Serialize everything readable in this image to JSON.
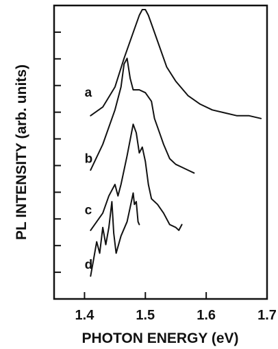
{
  "chart_data": {
    "type": "line",
    "xlabel": "PHOTON ENERGY (eV)",
    "ylabel": "PL INTENSITY (arb. units)",
    "xlim": [
      1.35,
      1.7
    ],
    "ylim": [
      0,
      10
    ],
    "x_ticks": [
      "1.4",
      "1.5",
      "1.6",
      "1.7"
    ],
    "y_ticks_count": 10,
    "grid": false,
    "legend": "none",
    "series": [
      {
        "name": "",
        "x": [
          1.41,
          1.43,
          1.45,
          1.465,
          1.48,
          1.49,
          1.495,
          1.5,
          1.505,
          1.51,
          1.52,
          1.535,
          1.55,
          1.57,
          1.59,
          1.61,
          1.63,
          1.65,
          1.67,
          1.69
        ],
        "y": [
          6.3,
          6.6,
          7.3,
          8.3,
          9.2,
          9.8,
          10.0,
          10.0,
          9.8,
          9.5,
          8.9,
          8.0,
          7.5,
          7.0,
          6.7,
          6.5,
          6.4,
          6.3,
          6.3,
          6.2
        ]
      },
      {
        "name": "a",
        "x": [
          1.41,
          1.43,
          1.45,
          1.46,
          1.465,
          1.47,
          1.475,
          1.48,
          1.49,
          1.5,
          1.51,
          1.515,
          1.52,
          1.525,
          1.53,
          1.54,
          1.55,
          1.56,
          1.57,
          1.58
        ],
        "y": [
          4.4,
          5.3,
          6.5,
          7.3,
          8.1,
          8.3,
          7.6,
          7.2,
          7.2,
          7.1,
          6.8,
          6.2,
          5.9,
          5.6,
          5.3,
          4.8,
          4.6,
          4.5,
          4.4,
          4.3
        ],
        "label_at": [
          1.425,
          7.1
        ]
      },
      {
        "name": "b",
        "x": [
          1.41,
          1.43,
          1.44,
          1.45,
          1.455,
          1.46,
          1.47,
          1.48,
          1.485,
          1.49,
          1.495,
          1.5,
          1.505,
          1.51,
          1.52,
          1.53,
          1.54,
          1.55,
          1.555,
          1.56
        ],
        "y": [
          2.3,
          2.9,
          3.5,
          3.9,
          3.5,
          3.9,
          4.9,
          6.0,
          5.7,
          5.0,
          5.2,
          4.7,
          3.9,
          3.4,
          3.2,
          2.9,
          2.5,
          2.4,
          2.3,
          2.5
        ],
        "label_at": [
          1.425,
          4.8
        ]
      },
      {
        "name": "c",
        "x": [
          1.41,
          1.415,
          1.42,
          1.425,
          1.43,
          1.435,
          1.44,
          1.445,
          1.448,
          1.452,
          1.46,
          1.47,
          1.475,
          1.48,
          1.482,
          1.485,
          1.488,
          1.49
        ],
        "y": [
          0.7,
          1.3,
          1.9,
          1.5,
          2.4,
          1.8,
          2.4,
          3.3,
          2.2,
          1.5,
          2.1,
          2.6,
          3.1,
          3.6,
          3.2,
          3.3,
          2.6,
          2.5
        ],
        "label_at": [
          1.425,
          3.0
        ]
      },
      {
        "name": "d",
        "label_at": [
          1.425,
          1.1
        ]
      }
    ]
  }
}
